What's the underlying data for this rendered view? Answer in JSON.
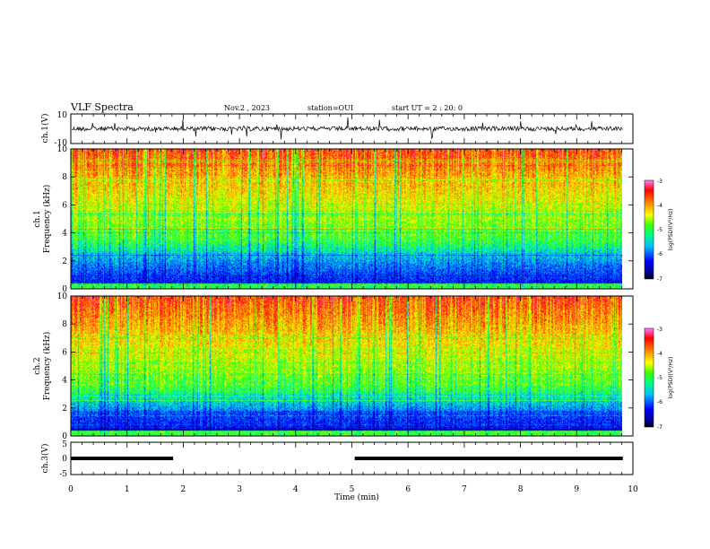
{
  "header": {
    "title": "VLF Spectra",
    "date": "Nov.2 , 2023",
    "station": "station=OUI",
    "start": "start UT = 2 : 20: 0"
  },
  "chart_data": [
    {
      "type": "line",
      "panel": "ch1",
      "ylabel": "ch.1(V)",
      "ylim": [
        -10,
        10
      ],
      "yticks": [
        "10",
        "-10"
      ],
      "series": [
        {
          "baseline": 0,
          "noise_amplitude": 2.5
        }
      ]
    },
    {
      "type": "heatmap",
      "panel": "ch1-spectrogram",
      "ylabel": "ch.1\nFrequency (kHz)",
      "ylim": [
        0,
        10
      ],
      "yticks": [
        "0",
        "2",
        "4",
        "6",
        "8",
        "10"
      ],
      "xlim": [
        0,
        10
      ],
      "colorbar": {
        "label": "log(PSD)(V²/Hz)",
        "range": [
          -7,
          -3
        ],
        "ticks": [
          "-3",
          "-4",
          "-5",
          "-6",
          "-7"
        ]
      },
      "colormap": [
        "#000080",
        "#0000ff",
        "#00a0ff",
        "#00ffff",
        "#00ff80",
        "#00ff00",
        "#80ff00",
        "#ffff00",
        "#ffc000",
        "#ff6000",
        "#ff0000",
        "#ff00ff"
      ]
    },
    {
      "type": "heatmap",
      "panel": "ch2-spectrogram",
      "ylabel": "ch.2\nFrequency (kHz)",
      "ylim": [
        0,
        10
      ],
      "yticks": [
        "0",
        "2",
        "4",
        "6",
        "8",
        "10"
      ],
      "xlim": [
        0,
        10
      ],
      "colorbar": {
        "label": "log(PSD)(V²/Hz)",
        "range": [
          -7,
          -3
        ],
        "ticks": [
          "-3",
          "-4",
          "-5",
          "-6",
          "-7"
        ]
      }
    },
    {
      "type": "line",
      "panel": "ch3",
      "ylabel": "ch.3(V)",
      "ylim": [
        -5,
        5
      ],
      "yticks": [
        "5",
        "0",
        "-5"
      ],
      "xlabel": "Time (min)",
      "xlim": [
        0,
        10
      ],
      "xticks": [
        "0",
        "1",
        "2",
        "3",
        "4",
        "5",
        "6",
        "7",
        "8",
        "9",
        "10"
      ],
      "series": [
        {
          "segments": [
            {
              "x": [
                0,
                1.82
              ],
              "y": 0
            },
            {
              "x": [
                5.05,
                9.82
              ],
              "y": 0
            }
          ]
        }
      ]
    }
  ]
}
